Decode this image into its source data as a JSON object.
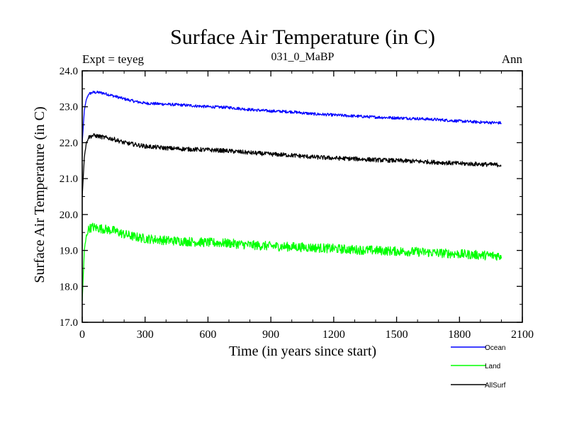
{
  "header": {
    "title": "Surface Air Temperature (in C)",
    "experiment": "Expt = teyeg",
    "subtitle": "031_0_MaBP",
    "period": "Ann"
  },
  "chart_data": {
    "type": "line",
    "title": "Surface Air Temperature (in C)",
    "xlabel": "Time (in years since start)",
    "ylabel": "Surface Air Temperature (in C)",
    "xlim": [
      0,
      2100
    ],
    "ylim": [
      17.0,
      24.0
    ],
    "x_ticks": [
      0,
      300,
      600,
      900,
      1200,
      1500,
      1800,
      2100
    ],
    "x_tick_labels": [
      "0",
      "300",
      "600",
      "900",
      "1200",
      "1500",
      "1800",
      "2100"
    ],
    "y_ticks": [
      17.0,
      18.0,
      19.0,
      20.0,
      21.0,
      22.0,
      23.0,
      24.0
    ],
    "y_tick_labels": [
      "17.0",
      "18.0",
      "19.0",
      "20.0",
      "21.0",
      "22.0",
      "23.0",
      "24.0"
    ],
    "legend_position": "bottom-right, outside plot",
    "grid": false,
    "x": [
      0,
      10,
      20,
      30,
      50,
      75,
      100,
      150,
      200,
      250,
      300,
      400,
      500,
      600,
      700,
      800,
      900,
      1000,
      1100,
      1200,
      1300,
      1400,
      1500,
      1600,
      1700,
      1800,
      1900,
      2000
    ],
    "series": [
      {
        "name": "Ocean",
        "color": "#0000ff",
        "noise": 0.04,
        "values": [
          22.0,
          22.9,
          23.2,
          23.35,
          23.4,
          23.4,
          23.38,
          23.3,
          23.22,
          23.15,
          23.1,
          23.07,
          23.04,
          23.0,
          22.98,
          22.92,
          22.88,
          22.86,
          22.8,
          22.77,
          22.74,
          22.71,
          22.69,
          22.67,
          22.64,
          22.6,
          22.57,
          22.55
        ]
      },
      {
        "name": "Land",
        "color": "#00ff00",
        "noise": 0.13,
        "values": [
          17.6,
          19.0,
          19.4,
          19.6,
          19.65,
          19.62,
          19.6,
          19.55,
          19.45,
          19.38,
          19.33,
          19.28,
          19.25,
          19.22,
          19.2,
          19.15,
          19.12,
          19.1,
          19.08,
          19.05,
          19.02,
          19.0,
          18.98,
          18.96,
          18.93,
          18.9,
          18.87,
          18.85
        ]
      },
      {
        "name": "AllSurf",
        "color": "#000000",
        "noise": 0.06,
        "values": [
          20.5,
          21.6,
          22.0,
          22.15,
          22.2,
          22.18,
          22.15,
          22.1,
          22.0,
          21.95,
          21.9,
          21.85,
          21.82,
          21.8,
          21.77,
          21.72,
          21.68,
          21.65,
          21.6,
          21.57,
          21.55,
          21.52,
          21.5,
          21.48,
          21.45,
          21.42,
          21.4,
          21.38
        ]
      }
    ]
  }
}
